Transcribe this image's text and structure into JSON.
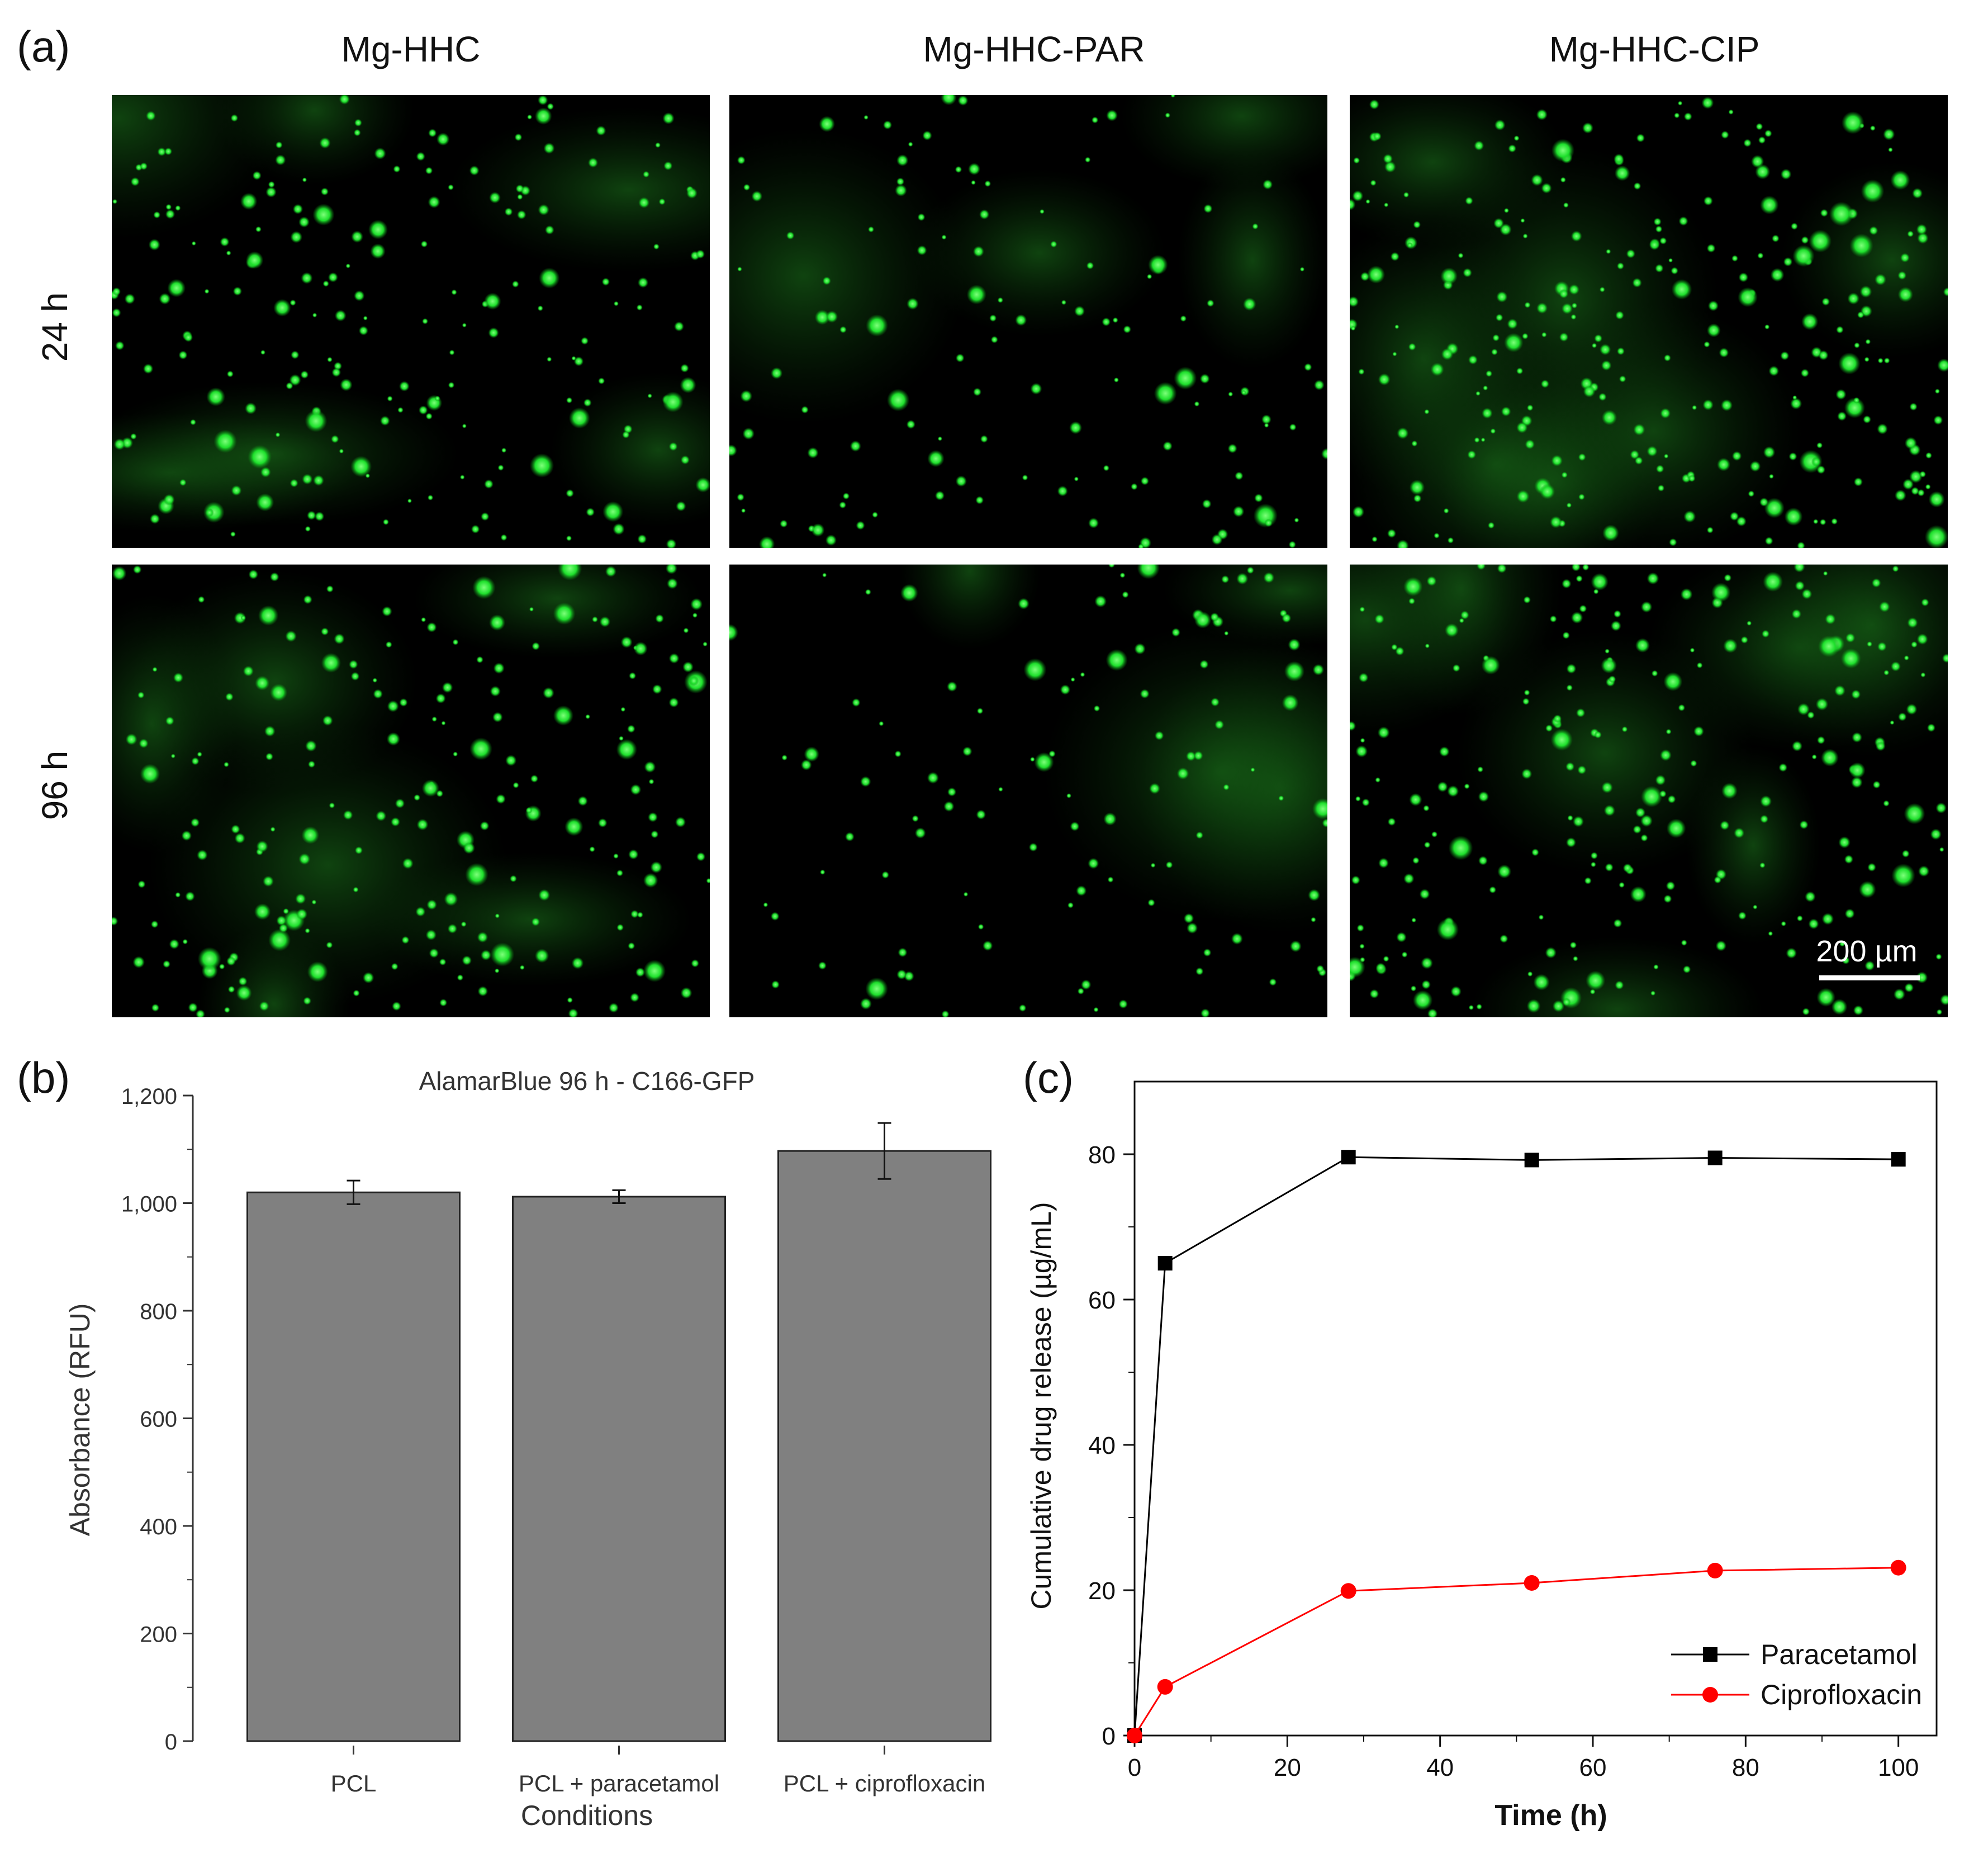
{
  "panel_a": {
    "label": "(a)",
    "columns": [
      "Mg-HHC",
      "Mg-HHC-PAR",
      "Mg-HHC-CIP"
    ],
    "rows": [
      "24 h",
      "96 h"
    ],
    "scale_bar": "200 µm",
    "colors": {
      "background": "#000000",
      "fluorescence": "#22ee33"
    },
    "cell_density": [
      [
        0.55,
        0.25,
        0.85
      ],
      [
        0.6,
        0.2,
        0.75
      ]
    ]
  },
  "panel_b": {
    "label": "(b)"
  },
  "panel_c": {
    "label": "(c)"
  },
  "chart_data": [
    {
      "type": "bar",
      "title": "AlamarBlue 96 h - C166-GFP",
      "xlabel": "Conditions",
      "ylabel": "Absorbance (RFU)",
      "categories": [
        "PCL",
        "PCL + paracetamol",
        "PCL + ciprofloxacin"
      ],
      "values": [
        1020,
        1012,
        1097
      ],
      "errors": [
        22,
        12,
        52
      ],
      "ylim": [
        0,
        1200
      ],
      "yticks": [
        0,
        200,
        400,
        600,
        800,
        1000,
        1200
      ],
      "ytick_labels": [
        "0",
        "200",
        "400",
        "600",
        "800",
        "1,000",
        "1,200"
      ],
      "bar_color": "#808080",
      "grid": false
    },
    {
      "type": "line",
      "title": "",
      "xlabel": "Time (h)",
      "ylabel": "Cumulative drug release (µg/mL)",
      "xlim": [
        0,
        105
      ],
      "ylim": [
        0,
        90
      ],
      "xticks": [
        0,
        20,
        40,
        60,
        80,
        100
      ],
      "yticks": [
        0,
        20,
        40,
        60,
        80
      ],
      "legend_position": "bottom-right",
      "grid": false,
      "series": [
        {
          "name": "Paracetamol",
          "color": "#000000",
          "marker": "square",
          "x": [
            0,
            4,
            28,
            52,
            76,
            100
          ],
          "y": [
            0,
            65,
            79.6,
            79.2,
            79.5,
            79.3
          ]
        },
        {
          "name": "Ciprofloxacin",
          "color": "#ff0000",
          "marker": "circle",
          "x": [
            0,
            4,
            28,
            52,
            76,
            100
          ],
          "y": [
            0,
            6.7,
            19.9,
            21,
            22.7,
            23.1
          ]
        }
      ]
    }
  ]
}
